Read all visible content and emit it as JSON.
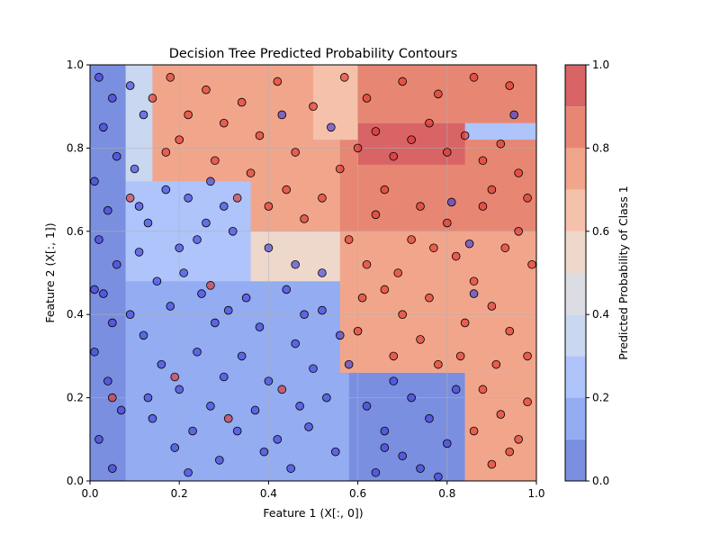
{
  "chart_data": {
    "type": "contour-scatter",
    "title": "Decision Tree Predicted Probability Contours",
    "xlabel": "Feature 1 (X[:, 0])",
    "ylabel": "Feature 2 (X[:, 1])",
    "xlim": [
      0,
      1
    ],
    "ylim": [
      0,
      1
    ],
    "xticks": [
      "0.0",
      "0.2",
      "0.4",
      "0.6",
      "0.8",
      "1.0"
    ],
    "yticks": [
      "0.0",
      "0.2",
      "0.4",
      "0.6",
      "0.8",
      "1.0"
    ],
    "grid": true,
    "colorbar": {
      "label": "Predicted Probability of Class 1",
      "levels": [
        0.0,
        0.1,
        0.2,
        0.3,
        0.4,
        0.5,
        0.6,
        0.7,
        0.8,
        0.9,
        1.0
      ],
      "ticks": [
        "0.0",
        "0.2",
        "0.4",
        "0.6",
        "0.8",
        "1.0"
      ],
      "colors": [
        "#7b8fe0",
        "#93acf2",
        "#aec4fb",
        "#c9d7f0",
        "#dcdde3",
        "#eed8cc",
        "#f6c1aa",
        "#f1a68c",
        "#e78773",
        "#d86466"
      ]
    },
    "class_colors": {
      "class_0": "#3a3ad8",
      "class_1": "#e0302a"
    },
    "regions": [
      {
        "x": [
          0.0,
          0.08
        ],
        "y": [
          0.0,
          1.0
        ],
        "prob": 0.02
      },
      {
        "x": [
          0.08,
          0.58
        ],
        "y": [
          0.0,
          0.48
        ],
        "prob": 0.12
      },
      {
        "x": [
          0.58,
          0.84
        ],
        "y": [
          0.0,
          0.26
        ],
        "prob": 0.08
      },
      {
        "x": [
          0.84,
          1.0
        ],
        "y": [
          0.0,
          0.26
        ],
        "prob": 0.72
      },
      {
        "x": [
          0.56,
          1.0
        ],
        "y": [
          0.26,
          0.6
        ],
        "prob": 0.75
      },
      {
        "x": [
          0.08,
          0.36
        ],
        "y": [
          0.48,
          0.72
        ],
        "prob": 0.2
      },
      {
        "x": [
          0.36,
          0.56
        ],
        "y": [
          0.48,
          0.6
        ],
        "prob": 0.55
      },
      {
        "x": [
          0.08,
          0.14
        ],
        "y": [
          0.72,
          1.0
        ],
        "prob": 0.3
      },
      {
        "x": [
          0.14,
          0.5
        ],
        "y": [
          0.72,
          1.0
        ],
        "prob": 0.78
      },
      {
        "x": [
          0.36,
          0.56
        ],
        "y": [
          0.6,
          0.82
        ],
        "prob": 0.75
      },
      {
        "x": [
          0.56,
          1.0
        ],
        "y": [
          0.6,
          0.82
        ],
        "prob": 0.8
      },
      {
        "x": [
          0.5,
          0.6
        ],
        "y": [
          0.82,
          1.0
        ],
        "prob": 0.68
      },
      {
        "x": [
          0.6,
          0.84
        ],
        "y": [
          0.76,
          0.86
        ],
        "prob": 0.93
      },
      {
        "x": [
          0.6,
          1.0
        ],
        "y": [
          0.86,
          1.0
        ],
        "prob": 0.82
      }
    ],
    "points": {
      "class_0": [
        [
          0.02,
          0.97
        ],
        [
          0.05,
          0.92
        ],
        [
          0.03,
          0.85
        ],
        [
          0.06,
          0.78
        ],
        [
          0.01,
          0.72
        ],
        [
          0.04,
          0.65
        ],
        [
          0.02,
          0.58
        ],
        [
          0.06,
          0.52
        ],
        [
          0.03,
          0.45
        ],
        [
          0.05,
          0.38
        ],
        [
          0.01,
          0.31
        ],
        [
          0.04,
          0.24
        ],
        [
          0.07,
          0.17
        ],
        [
          0.02,
          0.1
        ],
        [
          0.05,
          0.03
        ],
        [
          0.09,
          0.95
        ],
        [
          0.12,
          0.88
        ],
        [
          0.1,
          0.75
        ],
        [
          0.13,
          0.62
        ],
        [
          0.11,
          0.55
        ],
        [
          0.15,
          0.48
        ],
        [
          0.18,
          0.42
        ],
        [
          0.12,
          0.35
        ],
        [
          0.16,
          0.28
        ],
        [
          0.2,
          0.22
        ],
        [
          0.14,
          0.15
        ],
        [
          0.19,
          0.08
        ],
        [
          0.22,
          0.02
        ],
        [
          0.25,
          0.45
        ],
        [
          0.28,
          0.38
        ],
        [
          0.24,
          0.31
        ],
        [
          0.3,
          0.25
        ],
        [
          0.27,
          0.18
        ],
        [
          0.33,
          0.12
        ],
        [
          0.29,
          0.05
        ],
        [
          0.35,
          0.44
        ],
        [
          0.38,
          0.37
        ],
        [
          0.34,
          0.3
        ],
        [
          0.4,
          0.24
        ],
        [
          0.37,
          0.17
        ],
        [
          0.42,
          0.1
        ],
        [
          0.45,
          0.03
        ],
        [
          0.44,
          0.46
        ],
        [
          0.48,
          0.4
        ],
        [
          0.46,
          0.33
        ],
        [
          0.5,
          0.27
        ],
        [
          0.53,
          0.2
        ],
        [
          0.49,
          0.13
        ],
        [
          0.55,
          0.07
        ],
        [
          0.52,
          0.41
        ],
        [
          0.56,
          0.35
        ],
        [
          0.22,
          0.68
        ],
        [
          0.26,
          0.62
        ],
        [
          0.2,
          0.56
        ],
        [
          0.3,
          0.66
        ],
        [
          0.17,
          0.7
        ],
        [
          0.24,
          0.58
        ],
        [
          0.32,
          0.6
        ],
        [
          0.21,
          0.5
        ],
        [
          0.62,
          0.18
        ],
        [
          0.66,
          0.12
        ],
        [
          0.7,
          0.06
        ],
        [
          0.64,
          0.02
        ],
        [
          0.72,
          0.2
        ],
        [
          0.76,
          0.15
        ],
        [
          0.8,
          0.09
        ],
        [
          0.74,
          0.03
        ],
        [
          0.82,
          0.22
        ],
        [
          0.68,
          0.24
        ],
        [
          0.78,
          0.01
        ],
        [
          0.4,
          0.56
        ],
        [
          0.46,
          0.52
        ],
        [
          0.52,
          0.5
        ],
        [
          0.81,
          0.67
        ],
        [
          0.95,
          0.88
        ],
        [
          0.86,
          0.45
        ],
        [
          0.43,
          0.88
        ],
        [
          0.54,
          0.85
        ],
        [
          0.01,
          0.46
        ],
        [
          0.09,
          0.4
        ],
        [
          0.13,
          0.2
        ],
        [
          0.23,
          0.12
        ],
        [
          0.31,
          0.41
        ],
        [
          0.39,
          0.07
        ],
        [
          0.47,
          0.18
        ],
        [
          0.58,
          0.28
        ],
        [
          0.27,
          0.72
        ],
        [
          0.11,
          0.66
        ],
        [
          0.66,
          0.08
        ],
        [
          0.85,
          0.57
        ]
      ],
      "class_1": [
        [
          0.14,
          0.92
        ],
        [
          0.18,
          0.97
        ],
        [
          0.22,
          0.88
        ],
        [
          0.26,
          0.94
        ],
        [
          0.3,
          0.86
        ],
        [
          0.34,
          0.91
        ],
        [
          0.38,
          0.83
        ],
        [
          0.42,
          0.96
        ],
        [
          0.46,
          0.79
        ],
        [
          0.2,
          0.82
        ],
        [
          0.28,
          0.77
        ],
        [
          0.36,
          0.74
        ],
        [
          0.44,
          0.7
        ],
        [
          0.4,
          0.66
        ],
        [
          0.48,
          0.63
        ],
        [
          0.52,
          0.68
        ],
        [
          0.56,
          0.75
        ],
        [
          0.6,
          0.8
        ],
        [
          0.64,
          0.84
        ],
        [
          0.68,
          0.78
        ],
        [
          0.72,
          0.82
        ],
        [
          0.76,
          0.86
        ],
        [
          0.8,
          0.79
        ],
        [
          0.84,
          0.83
        ],
        [
          0.88,
          0.77
        ],
        [
          0.92,
          0.81
        ],
        [
          0.96,
          0.74
        ],
        [
          0.62,
          0.92
        ],
        [
          0.7,
          0.96
        ],
        [
          0.78,
          0.93
        ],
        [
          0.86,
          0.97
        ],
        [
          0.94,
          0.95
        ],
        [
          0.58,
          0.58
        ],
        [
          0.62,
          0.52
        ],
        [
          0.66,
          0.46
        ],
        [
          0.7,
          0.4
        ],
        [
          0.74,
          0.34
        ],
        [
          0.78,
          0.28
        ],
        [
          0.82,
          0.54
        ],
        [
          0.86,
          0.48
        ],
        [
          0.9,
          0.42
        ],
        [
          0.94,
          0.36
        ],
        [
          0.98,
          0.3
        ],
        [
          0.64,
          0.64
        ],
        [
          0.72,
          0.58
        ],
        [
          0.8,
          0.62
        ],
        [
          0.88,
          0.66
        ],
        [
          0.96,
          0.6
        ],
        [
          0.88,
          0.22
        ],
        [
          0.92,
          0.16
        ],
        [
          0.96,
          0.1
        ],
        [
          0.9,
          0.04
        ],
        [
          0.98,
          0.19
        ],
        [
          0.86,
          0.12
        ],
        [
          0.94,
          0.07
        ],
        [
          0.6,
          0.36
        ],
        [
          0.68,
          0.3
        ],
        [
          0.76,
          0.44
        ],
        [
          0.84,
          0.38
        ],
        [
          0.99,
          0.52
        ],
        [
          0.57,
          0.97
        ],
        [
          0.5,
          0.9
        ],
        [
          0.17,
          0.79
        ],
        [
          0.33,
          0.68
        ],
        [
          0.09,
          0.68
        ],
        [
          0.27,
          0.47
        ],
        [
          0.31,
          0.15
        ],
        [
          0.43,
          0.22
        ],
        [
          0.19,
          0.25
        ],
        [
          0.05,
          0.2
        ],
        [
          0.66,
          0.7
        ],
        [
          0.74,
          0.66
        ],
        [
          0.9,
          0.7
        ],
        [
          0.98,
          0.68
        ],
        [
          0.61,
          0.44
        ],
        [
          0.69,
          0.5
        ],
        [
          0.77,
          0.56
        ],
        [
          0.93,
          0.56
        ],
        [
          0.83,
          0.3
        ],
        [
          0.91,
          0.28
        ]
      ]
    }
  }
}
